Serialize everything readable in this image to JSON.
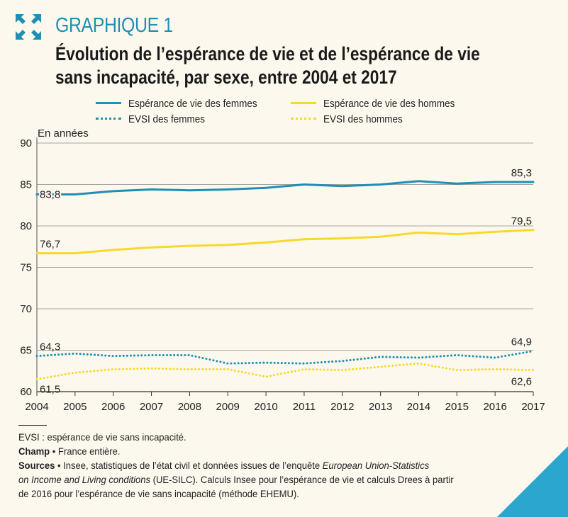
{
  "header": {
    "graph_label": "GRAPHIQUE 1",
    "title_line1": "Évolution de l’espérance de vie et de l’espérance de vie",
    "title_line2": "sans incapacité, par sexe, entre 2004 et 2017"
  },
  "legend": {
    "female_le": "Espérance de vie des femmes",
    "male_le": "Espérance de vie des hommes",
    "female_evsi": "EVSI des femmes",
    "male_evsi": "EVSI des hommes"
  },
  "notes": {
    "evsi_def": "EVSI : espérance de vie sans incapacité.",
    "champ_label": "Champ",
    "champ_text": " • France entière.",
    "sources_label": "Sources",
    "sources_text_1": " • Insee, statistiques de l’état civil et données issues de l’enquête ",
    "sources_italic_1": "European Union-Statistics",
    "sources_italic_2": "on Income and Living conditions",
    "sources_text_2": " (UE-SILC). Calculs Insee pour l’espérance de vie et calculs Drees à partir",
    "sources_text_3": "de 2016 pour l’espérance de vie sans incapacité (méthode EHEMU)."
  },
  "colors": {
    "blue": "#1f8fb4",
    "yellow": "#f7d92a",
    "accent_corner": "#2aa6cf"
  },
  "icons": {
    "logo": "expand-arrows-icon"
  },
  "chart_data": {
    "type": "line",
    "ylabel": "En années",
    "ylim": [
      60,
      90
    ],
    "yticks": [
      60,
      65,
      70,
      75,
      80,
      85,
      90
    ],
    "x": [
      "2004",
      "2005",
      "2006",
      "2007",
      "2008",
      "2009",
      "2010",
      "2011",
      "2012",
      "2013",
      "2014",
      "2015",
      "2016",
      "2017"
    ],
    "grid": true,
    "series": [
      {
        "name": "Espérance de vie des femmes",
        "style": "solid",
        "color": "#1f8fb4",
        "values": [
          83.8,
          83.8,
          84.2,
          84.4,
          84.3,
          84.4,
          84.6,
          85.0,
          84.8,
          85.0,
          85.4,
          85.1,
          85.3,
          85.3
        ]
      },
      {
        "name": "Espérance de vie des hommes",
        "style": "solid",
        "color": "#f7d92a",
        "values": [
          76.7,
          76.7,
          77.1,
          77.4,
          77.6,
          77.7,
          78.0,
          78.4,
          78.5,
          78.7,
          79.2,
          79.0,
          79.3,
          79.5
        ]
      },
      {
        "name": "EVSI des femmes",
        "style": "dotted",
        "color": "#1f8fb4",
        "values": [
          64.3,
          64.6,
          64.3,
          64.4,
          64.4,
          63.4,
          63.5,
          63.4,
          63.7,
          64.2,
          64.1,
          64.4,
          64.1,
          64.9
        ]
      },
      {
        "name": "EVSI des hommes",
        "style": "dotted",
        "color": "#f7d92a",
        "values": [
          61.5,
          62.3,
          62.7,
          62.8,
          62.7,
          62.7,
          61.8,
          62.7,
          62.6,
          63.0,
          63.4,
          62.6,
          62.7,
          62.6
        ]
      }
    ],
    "annotations": [
      {
        "series": 0,
        "index": 0,
        "text": "83,8"
      },
      {
        "series": 0,
        "index": 13,
        "text": "85,3"
      },
      {
        "series": 1,
        "index": 0,
        "text": "76,7"
      },
      {
        "series": 1,
        "index": 13,
        "text": "79,5"
      },
      {
        "series": 2,
        "index": 0,
        "text": "64,3"
      },
      {
        "series": 2,
        "index": 13,
        "text": "64,9"
      },
      {
        "series": 3,
        "index": 0,
        "text": "61,5"
      },
      {
        "series": 3,
        "index": 13,
        "text": "62,6"
      }
    ]
  }
}
